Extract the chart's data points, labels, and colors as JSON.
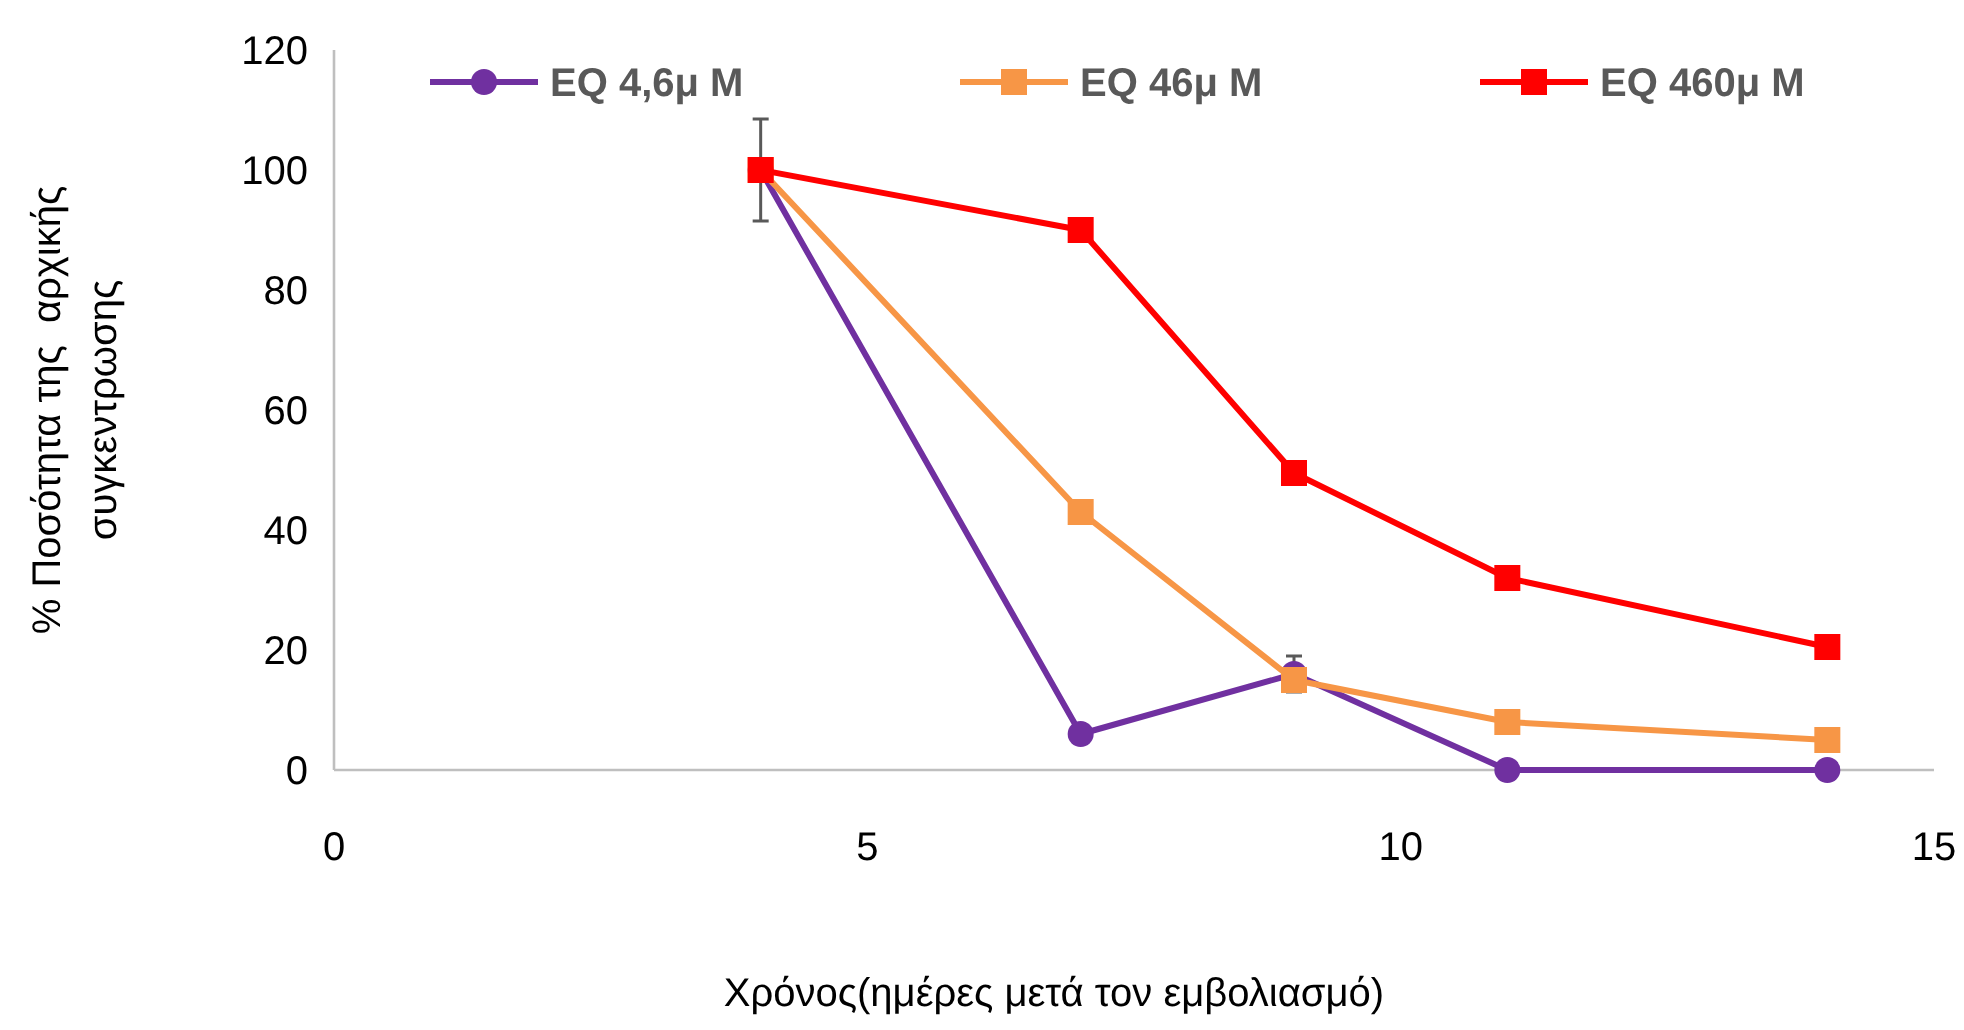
{
  "chart_data": {
    "type": "line",
    "xlabel": "Χρόνος(ημέρες μετά τον εμβολιασμό)",
    "ylabel": "% Ποσότητα της  αρχικής\nσυγκεντρωσης",
    "x": [
      4,
      7,
      9,
      11,
      14
    ],
    "xlim": [
      0,
      15
    ],
    "xticks": [
      0,
      5,
      10,
      15
    ],
    "ylim": [
      0,
      120
    ],
    "yticks": [
      0,
      20,
      40,
      60,
      80,
      100,
      120
    ],
    "grid": false,
    "legend": "top",
    "series": [
      {
        "name": "EQ 4,6μ M",
        "color": "#7030a0",
        "marker": "circle",
        "values": [
          100,
          6,
          16,
          0,
          0
        ],
        "errors": [
          8.5,
          null,
          3,
          null,
          null
        ]
      },
      {
        "name": "EQ 46μ M",
        "color": "#f79646",
        "marker": "square",
        "values": [
          100,
          43,
          15,
          8,
          5
        ]
      },
      {
        "name": "EQ 460μ M",
        "color": "#ff0000",
        "marker": "square",
        "values": [
          100,
          90,
          49.5,
          32,
          20.5
        ]
      }
    ]
  }
}
